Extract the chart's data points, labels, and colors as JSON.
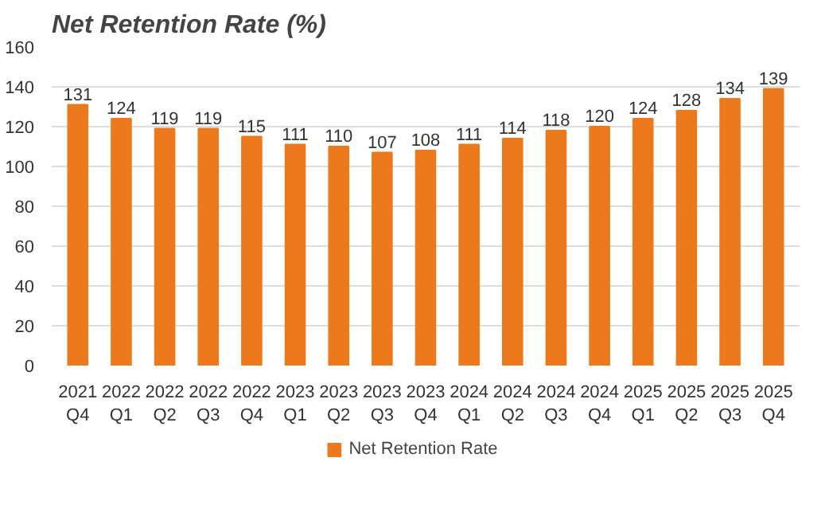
{
  "chart_data": {
    "type": "bar",
    "title": "Net Retention Rate (%)",
    "categories": [
      "2021\nQ4",
      "2022\nQ1",
      "2022\nQ2",
      "2022\nQ3",
      "2022\nQ4",
      "2023\nQ1",
      "2023\nQ2",
      "2023\nQ3",
      "2023\nQ4",
      "2024\nQ1",
      "2024\nQ2",
      "2024\nQ3",
      "2024\nQ4",
      "2025\nQ1",
      "2025\nQ2",
      "2025\nQ3",
      "2025\nQ4"
    ],
    "series": [
      {
        "name": "Net Retention Rate",
        "color": "#ec7a1c",
        "values": [
          131,
          124,
          119,
          119,
          115,
          111,
          110,
          107,
          108,
          111,
          114,
          118,
          120,
          124,
          128,
          134,
          139
        ]
      }
    ],
    "ylim": [
      0,
      160
    ],
    "yticks": [
      0,
      20,
      40,
      60,
      80,
      100,
      120,
      140,
      160
    ],
    "grid": "y",
    "legend": "bottom",
    "data_labels": true
  }
}
